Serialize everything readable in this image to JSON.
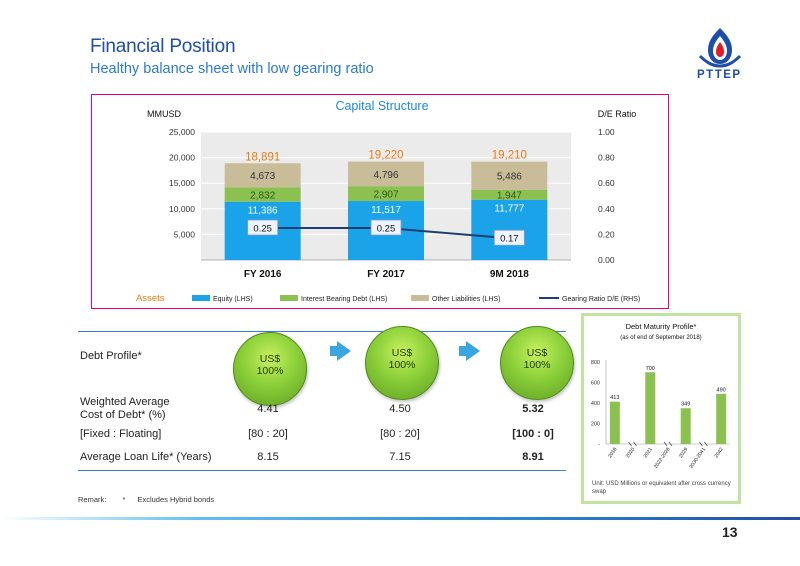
{
  "header": {
    "title": "Financial Position",
    "subtitle": "Healthy balance sheet with low gearing ratio",
    "logo_text": "PTTEP"
  },
  "capital_chart": {
    "title": "Capital Structure",
    "left_axis_label": "MMUSD",
    "right_axis_label": "D/E Ratio",
    "assets_label": "Assets"
  },
  "chart_data": [
    {
      "type": "bar",
      "title": "Capital Structure",
      "xlabel": "",
      "ylabel": "MMUSD",
      "y2label": "D/E Ratio",
      "categories": [
        "FY 2016",
        "FY 2017",
        "9M 2018"
      ],
      "stacked": true,
      "ylim": [
        0,
        25000
      ],
      "yticks": [
        "5,000",
        "10,000",
        "15,000",
        "20,000",
        "25,000"
      ],
      "y2lim": [
        0,
        1.0
      ],
      "y2ticks": [
        "0.00",
        "0.20",
        "0.40",
        "0.60",
        "0.80",
        "1.00"
      ],
      "series": [
        {
          "name": "Equity (LHS)",
          "values": [
            11386,
            11517,
            11777
          ],
          "labels": [
            "11,386",
            "11,517",
            "11,777"
          ],
          "color": "#1aa3e8"
        },
        {
          "name": "Interest Bearing Debt (LHS)",
          "values": [
            2832,
            2907,
            1947
          ],
          "labels": [
            "2,832",
            "2,907",
            "1,947"
          ],
          "color": "#8cc152"
        },
        {
          "name": "Other Liabilities (LHS)",
          "values": [
            4673,
            4796,
            5486
          ],
          "labels": [
            "4,673",
            "4,796",
            "5,486"
          ],
          "color": "#c8bd98"
        },
        {
          "name": "Gearing Ratio D/E (RHS)",
          "type": "line",
          "axis": "right",
          "values": [
            0.25,
            0.25,
            0.17
          ],
          "labels": [
            "0.25",
            "0.25",
            "0.17"
          ],
          "color": "#1f3f73"
        }
      ],
      "totals": {
        "name": "Assets",
        "values": [
          18891,
          19220,
          19210
        ],
        "labels": [
          "18,891",
          "19,220",
          "19,210"
        ],
        "color": "#ea7a17"
      },
      "grid": true,
      "legend": "bottom"
    },
    {
      "type": "bar",
      "title": "Debt Maturity Profile*",
      "subtitle": "(as of end of September 2018)",
      "categories": [
        "2018",
        "2020",
        "2021",
        "2022-2028",
        "2029",
        "2030-2041",
        "2042"
      ],
      "values": [
        413,
        null,
        700,
        null,
        349,
        null,
        490
      ],
      "ylim": [
        0,
        800
      ],
      "yticks": [
        "-",
        "200",
        "400",
        "600",
        "800"
      ],
      "color": "#8cc152",
      "note": "Unit: USD Millions or equivalent after cross currency swap"
    }
  ],
  "debt_profile": {
    "heading": "Debt Profile*",
    "circles": [
      {
        "line1": "US$",
        "line2": "100%"
      },
      {
        "line1": "US$",
        "line2": "100%"
      },
      {
        "line1": "US$",
        "line2": "100%"
      }
    ],
    "rows": [
      {
        "label_line1": "Weighted Average",
        "label_line2": "Cost of Debt* (%)",
        "values": [
          "4.41",
          "4.50",
          "5.32"
        ]
      },
      {
        "label_line1": "[Fixed : Floating]",
        "label_line2": "",
        "values": [
          "[80 : 20]",
          "[80 : 20]",
          "[100 : 0]"
        ]
      },
      {
        "label_line1": "Average Loan Life* (Years)",
        "label_line2": "",
        "values": [
          "8.15",
          "7.15",
          "8.91"
        ]
      }
    ]
  },
  "remark": {
    "label": "Remark:",
    "star": "*",
    "text": "Excludes Hybrid bonds"
  },
  "page_number": "13"
}
